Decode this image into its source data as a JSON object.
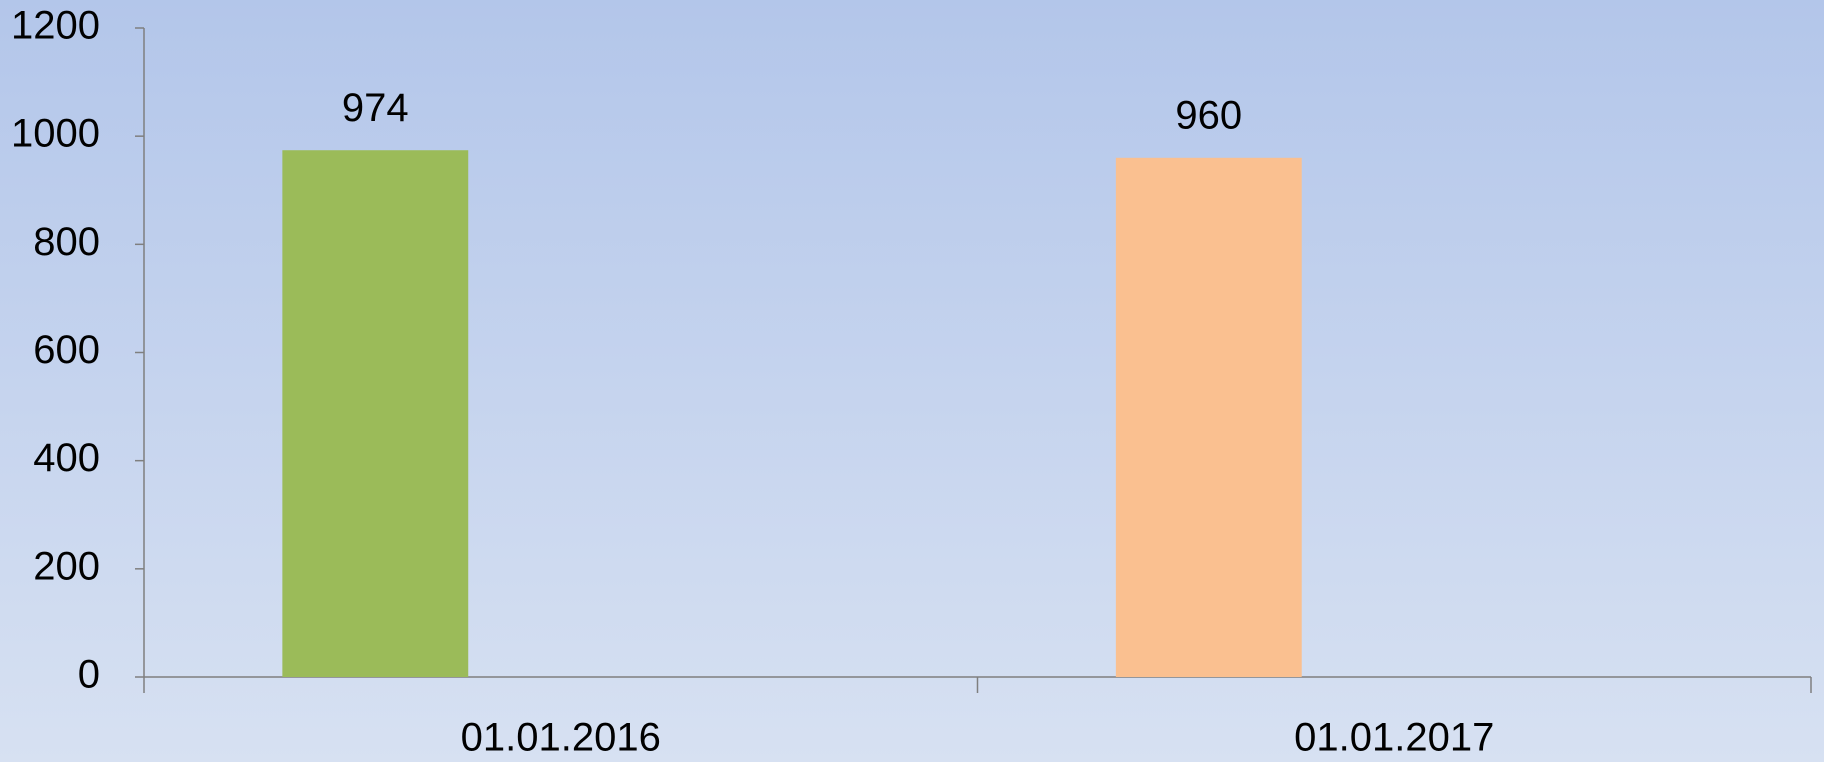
{
  "chart_data": {
    "type": "bar",
    "categories": [
      "01.01.2016",
      "01.01.2017"
    ],
    "values": [
      974,
      960
    ],
    "colors": [
      "#9bbb59",
      "#fac090"
    ],
    "ylim": [
      0,
      1200
    ],
    "yticks": [
      0,
      200,
      400,
      600,
      800,
      1000,
      1200
    ]
  }
}
